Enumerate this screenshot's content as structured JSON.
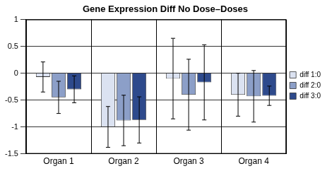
{
  "chart_data": {
    "type": "bar",
    "title": "Gene Expression Diff No Dose–Doses",
    "categories": [
      "Organ 1",
      "Organ 2",
      "Organ 3",
      "Organ 4"
    ],
    "series": [
      {
        "name": "diff 1:0",
        "color": "#dbe2f1",
        "values": [
          -0.07,
          -1.0,
          -0.1,
          -0.4
        ],
        "errors": [
          0.28,
          0.38,
          0.75,
          0.4
        ]
      },
      {
        "name": "diff 2:0",
        "color": "#8c9fc8",
        "values": [
          -0.45,
          -0.88,
          -0.4,
          -0.43
        ],
        "errors": [
          0.3,
          0.47,
          0.66,
          0.48
        ]
      },
      {
        "name": "diff 3:0",
        "color": "#2e4a8c",
        "values": [
          -0.3,
          -0.87,
          -0.17,
          -0.42
        ],
        "errors": [
          0.25,
          0.43,
          0.7,
          0.18
        ]
      }
    ],
    "ylim": [
      -1.5,
      1
    ],
    "yticks": [
      -1.5,
      -1,
      -0.5,
      0,
      0.5,
      1
    ],
    "grid": true,
    "legend": "right"
  }
}
